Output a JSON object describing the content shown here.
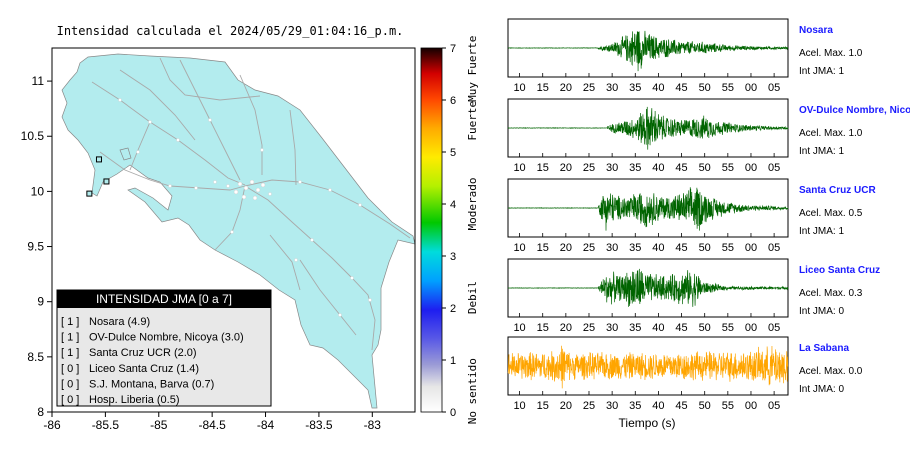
{
  "chart_data": [
    {
      "type": "map",
      "title": "Intensidad calculada el 2024/05/29_01:04:16_p.m.",
      "x_ticks": [
        "-86",
        "-85.5",
        "-85",
        "-84.5",
        "-84",
        "-83.5",
        "-83"
      ],
      "y_ticks": [
        "11",
        "10.5",
        "10",
        "9.5",
        "9",
        "8.5",
        "8"
      ],
      "xlim": [
        -86,
        -82.6
      ],
      "ylim": [
        8,
        11.3
      ],
      "colors": {
        "land": "#b3ecee",
        "ocean": "#ffffff",
        "roads": "#a8a8a8"
      },
      "colorbar": {
        "ticks": [
          "0",
          "1",
          "2",
          "3",
          "4",
          "5",
          "6",
          "7"
        ],
        "range": [
          0,
          7
        ],
        "categories": [
          "No sentido",
          "Debil",
          "Moderado",
          "Fuerte",
          "Muy Fuerte"
        ]
      },
      "legend": {
        "title": "INTENSIDAD JMA [0 a 7]",
        "items": [
          {
            "jma": "[ 1 ]",
            "station": "Nosara (4.9)"
          },
          {
            "jma": "[ 1 ]",
            "station": "OV-Dulce Nombre, Nicoya (3.0)"
          },
          {
            "jma": "[ 1 ]",
            "station": "Santa Cruz UCR (2.0)"
          },
          {
            "jma": "[ 0 ]",
            "station": "Liceo Santa Cruz (1.4)"
          },
          {
            "jma": "[ 0 ]",
            "station": "S.J. Montana, Barva (0.7)"
          },
          {
            "jma": "[ 0 ]",
            "station": "Hosp. Liberia (0.5)"
          }
        ]
      },
      "stations": [
        {
          "lon": -85.56,
          "lat": 10.29
        },
        {
          "lon": -85.49,
          "lat": 10.09
        },
        {
          "lon": -85.65,
          "lat": 9.98
        }
      ]
    },
    {
      "type": "line",
      "xlabel": "Tiempo (s)",
      "x_ticks": [
        "10",
        "15",
        "20",
        "25",
        "30",
        "35",
        "40",
        "45",
        "50",
        "55",
        "00",
        "05"
      ],
      "xlim": [
        7.5,
        68
      ],
      "series": [
        {
          "name": "Nosara",
          "acel": "Acel. Max. 1.0",
          "int": "Int JMA: 1",
          "color": "#006400",
          "onset": 27,
          "envelope": [
            [
              27,
              0.05
            ],
            [
              30,
              0.2
            ],
            [
              33,
              0.55
            ],
            [
              35.5,
              1.0
            ],
            [
              37,
              0.7
            ],
            [
              40,
              0.45
            ],
            [
              45,
              0.3
            ],
            [
              50,
              0.25
            ],
            [
              55,
              0.12
            ],
            [
              60,
              0.08
            ],
            [
              68,
              0.04
            ]
          ]
        },
        {
          "name": "OV-Dulce Nombre, Nicoya",
          "acel": "Acel. Max. 1.0",
          "int": "Int JMA: 1",
          "color": "#006400",
          "onset": 29,
          "envelope": [
            [
              29,
              0.1
            ],
            [
              32,
              0.3
            ],
            [
              35,
              0.45
            ],
            [
              38,
              1.0
            ],
            [
              41,
              0.5
            ],
            [
              45,
              0.35
            ],
            [
              50,
              0.5
            ],
            [
              53,
              0.3
            ],
            [
              58,
              0.15
            ],
            [
              63,
              0.08
            ],
            [
              68,
              0.05
            ]
          ]
        },
        {
          "name": "Santa Cruz UCR",
          "acel": "Acel. Max. 0.5",
          "int": "Int JMA: 1",
          "color": "#006400",
          "onset": 27,
          "envelope": [
            [
              27,
              0.1
            ],
            [
              28.5,
              0.9
            ],
            [
              31,
              0.5
            ],
            [
              35,
              0.6
            ],
            [
              37,
              0.8
            ],
            [
              41,
              0.5
            ],
            [
              45,
              0.6
            ],
            [
              48.5,
              1.0
            ],
            [
              51,
              0.5
            ],
            [
              55,
              0.25
            ],
            [
              60,
              0.12
            ],
            [
              68,
              0.06
            ]
          ]
        },
        {
          "name": "Liceo Santa Cruz",
          "acel": "Acel. Max. 0.3",
          "int": "Int JMA: 0",
          "color": "#006400",
          "onset": 27,
          "envelope": [
            [
              27,
              0.1
            ],
            [
              29,
              0.7
            ],
            [
              32,
              0.5
            ],
            [
              35,
              1.0
            ],
            [
              38,
              0.6
            ],
            [
              42,
              0.5
            ],
            [
              45,
              0.7
            ],
            [
              48,
              0.75
            ],
            [
              50,
              0.25
            ],
            [
              55,
              0.07
            ],
            [
              68,
              0.05
            ]
          ]
        },
        {
          "name": "La Sabana",
          "acel": "Acel. Max. 0.0",
          "int": "Int JMA: 0",
          "color": "#ffa500",
          "onset": 7.5,
          "envelope": [
            [
              7.5,
              0.55
            ],
            [
              17,
              0.6
            ],
            [
              19,
              0.95
            ],
            [
              21,
              0.55
            ],
            [
              35,
              0.55
            ],
            [
              50,
              0.6
            ],
            [
              60,
              0.65
            ],
            [
              65,
              0.85
            ],
            [
              68,
              0.8
            ]
          ]
        }
      ]
    }
  ]
}
